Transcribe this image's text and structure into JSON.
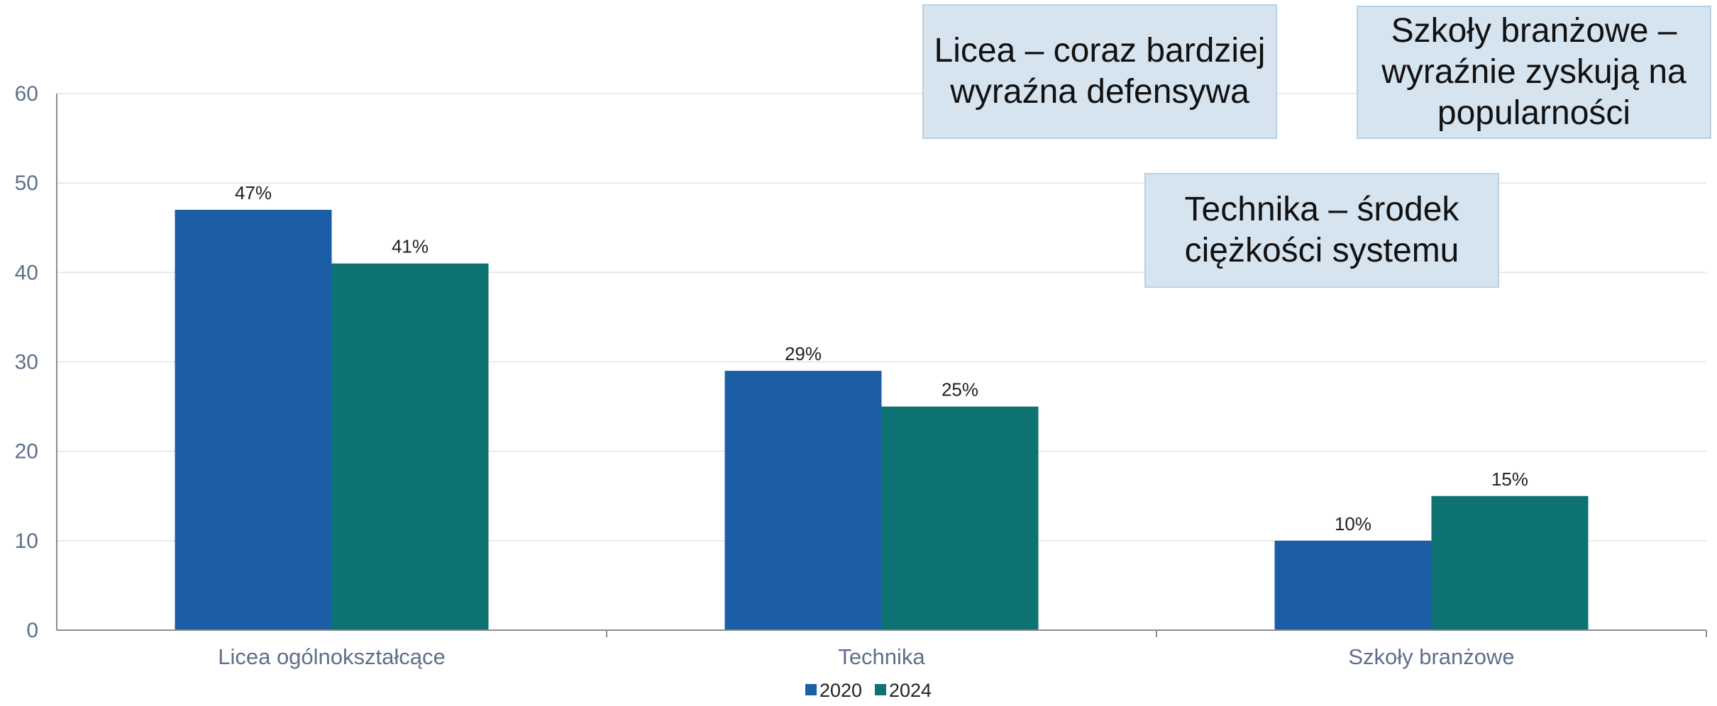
{
  "chart_data": {
    "type": "bar",
    "categories": [
      "Licea ogólnokształcące",
      "Technika",
      "Szkoły branżowe"
    ],
    "series": [
      {
        "name": "2020",
        "values": [
          47,
          29,
          10
        ],
        "labels": [
          "47%",
          "29%",
          "10%"
        ],
        "color": "#1b5ea6"
      },
      {
        "name": "2024",
        "values": [
          41,
          25,
          15
        ],
        "labels": [
          "41%",
          "25%",
          "15%"
        ],
        "color": "#0e7272"
      }
    ],
    "ylim": [
      0,
      60
    ],
    "yticks": [
      0,
      10,
      20,
      30,
      40,
      50,
      60
    ],
    "grid": true,
    "legend": "bottom-center",
    "annotations": [
      "Licea – coraz bardziej wyraźna defensywa",
      "Szkoły branżowe – wyraźnie zyskują na popularności",
      "Technika – środek ciężkości systemu"
    ]
  }
}
